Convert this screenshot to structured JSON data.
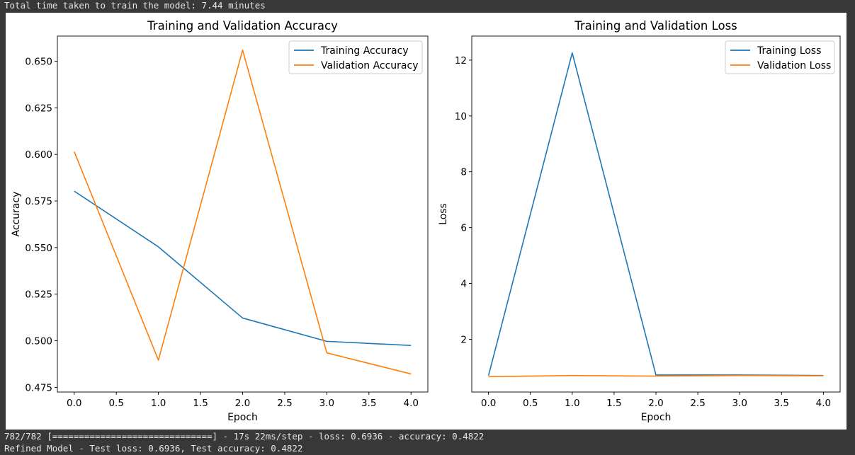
{
  "console": {
    "top_line": "Total time taken to train the model: 7.44 minutes",
    "bottom_line_1": "782/782 [==============================] - 17s 22ms/step - loss: 0.6936 - accuracy: 0.4822",
    "bottom_line_2": "Refined Model - Test loss: 0.6936, Test accuracy: 0.4822"
  },
  "chart_data": [
    {
      "type": "line",
      "title": "Training and Validation Accuracy",
      "xlabel": "Epoch",
      "ylabel": "Accuracy",
      "x": [
        0,
        1,
        2,
        3,
        4
      ],
      "xlim": [
        -0.2,
        4.2
      ],
      "ylim": [
        0.4725,
        0.6635
      ],
      "xticks": [
        0.0,
        0.5,
        1.0,
        1.5,
        2.0,
        2.5,
        3.0,
        3.5,
        4.0
      ],
      "xtick_labels": [
        "0.0",
        "0.5",
        "1.0",
        "1.5",
        "2.0",
        "2.5",
        "3.0",
        "3.5",
        "4.0"
      ],
      "yticks": [
        0.475,
        0.5,
        0.525,
        0.55,
        0.575,
        0.6,
        0.625,
        0.65
      ],
      "ytick_labels": [
        "0.475",
        "0.500",
        "0.525",
        "0.550",
        "0.575",
        "0.600",
        "0.625",
        "0.650"
      ],
      "grid": false,
      "legend_position": "top-right",
      "series": [
        {
          "name": "Training Accuracy",
          "color": "#1f77b4",
          "values": [
            0.5803,
            0.5504,
            0.5122,
            0.4997,
            0.4975
          ]
        },
        {
          "name": "Validation Accuracy",
          "color": "#ff7f0e",
          "values": [
            0.6015,
            0.4896,
            0.656,
            0.4935,
            0.4822
          ]
        }
      ]
    },
    {
      "type": "line",
      "title": "Training and Validation Loss",
      "xlabel": "Epoch",
      "ylabel": "Loss",
      "x": [
        0,
        1,
        2,
        3,
        4
      ],
      "xlim": [
        -0.2,
        4.2
      ],
      "ylim": [
        0.11,
        12.86
      ],
      "xticks": [
        0.0,
        0.5,
        1.0,
        1.5,
        2.0,
        2.5,
        3.0,
        3.5,
        4.0
      ],
      "xtick_labels": [
        "0.0",
        "0.5",
        "1.0",
        "1.5",
        "2.0",
        "2.5",
        "3.0",
        "3.5",
        "4.0"
      ],
      "yticks": [
        2,
        4,
        6,
        8,
        10,
        12
      ],
      "ytick_labels": [
        "2",
        "4",
        "6",
        "8",
        "10",
        "12"
      ],
      "grid": false,
      "legend_position": "top-right",
      "series": [
        {
          "name": "Training Loss",
          "color": "#1f77b4",
          "values": [
            0.7,
            12.26,
            0.72,
            0.72,
            0.7
          ]
        },
        {
          "name": "Validation Loss",
          "color": "#ff7f0e",
          "values": [
            0.66,
            0.7,
            0.68,
            0.7,
            0.69
          ]
        }
      ]
    }
  ]
}
